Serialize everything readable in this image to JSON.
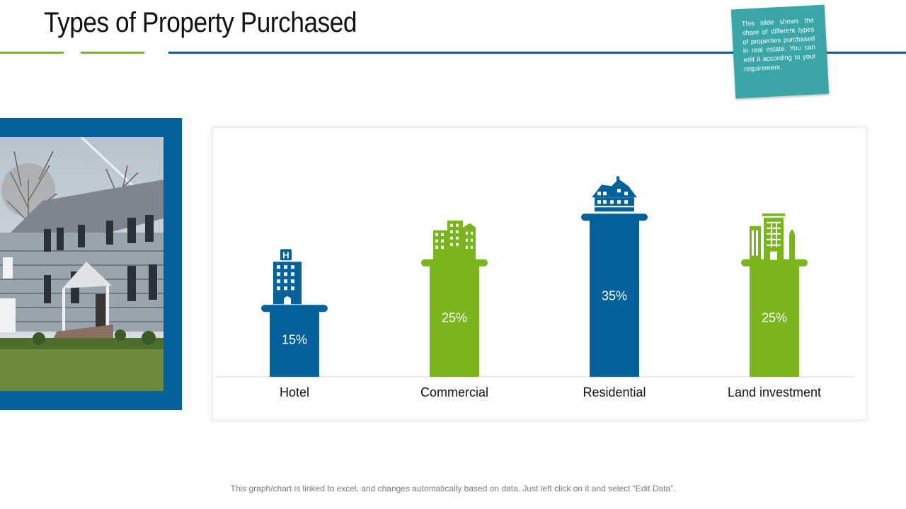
{
  "slide": {
    "title": "Types of Property Purchased",
    "note": "This slide shows the share of different types of properties purchased in real estate. You can edit it according to your requirement.",
    "footer": "This graph/chart is linked to excel, and changes automatically based on data. Just left click on it and select “Edit Data”."
  },
  "colors": {
    "blue": "#03629c",
    "green": "#7ab51d",
    "note_bg": "#3aa6a8"
  },
  "chart_data": {
    "type": "bar",
    "title": "",
    "xlabel": "",
    "ylabel": "",
    "ylim": [
      0,
      40
    ],
    "grid": false,
    "categories": [
      "Hotel",
      "Commercial",
      "Residential",
      "Land investment"
    ],
    "values": [
      15,
      25,
      35,
      25
    ],
    "value_labels": [
      "15%",
      "25%",
      "35%",
      "25%"
    ],
    "bar_colors": [
      "#03629c",
      "#7ab51d",
      "#03629c",
      "#7ab51d"
    ],
    "icons": [
      "hotel-icon",
      "commercial-buildings-icon",
      "residential-house-icon",
      "land-investment-icon"
    ]
  }
}
